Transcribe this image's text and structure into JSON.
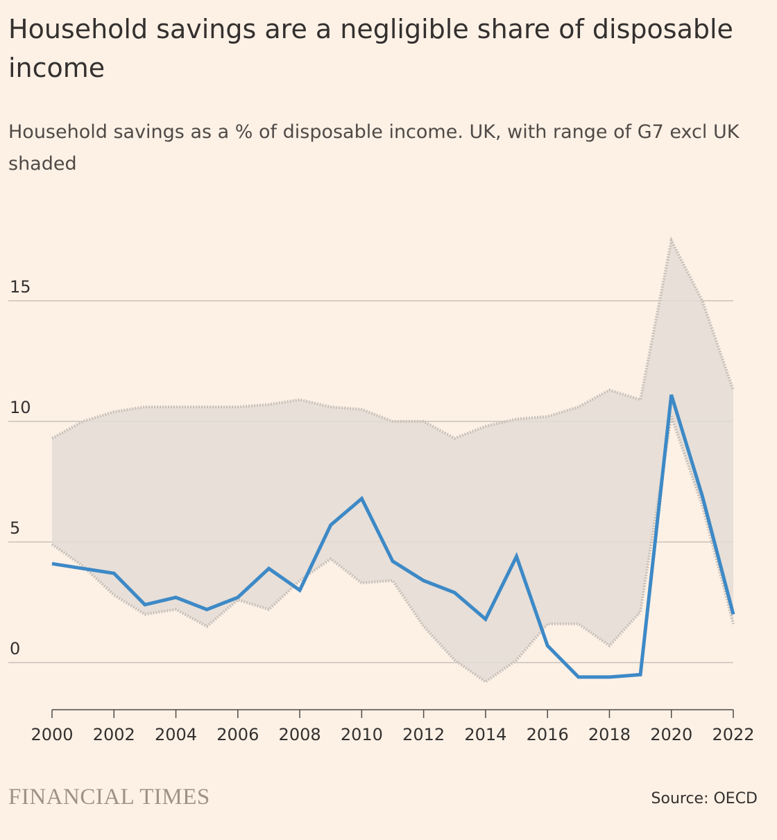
{
  "header": {
    "title": "Household savings are a negligible share of disposable income",
    "subtitle": "Household savings as a % of disposable income. UK, with range of G7 excl UK shaded"
  },
  "footer": {
    "brand": "FINANCIAL TIMES",
    "source": "Source: OECD"
  },
  "colors": {
    "background": "#fdf1e6",
    "uk_line": "#3d89c6",
    "range_fill": "#e3dcd5",
    "range_edge": "#c7c0b9",
    "gridline": "#c9c1b9",
    "text": "#33302e"
  },
  "chart_data": {
    "type": "line",
    "x": [
      2000,
      2001,
      2002,
      2003,
      2004,
      2005,
      2006,
      2007,
      2008,
      2009,
      2010,
      2011,
      2012,
      2013,
      2014,
      2015,
      2016,
      2017,
      2018,
      2019,
      2020,
      2021,
      2022
    ],
    "series": [
      {
        "name": "UK",
        "values": [
          4.1,
          3.9,
          3.7,
          2.4,
          2.7,
          2.2,
          2.7,
          3.9,
          3.0,
          5.7,
          6.8,
          4.2,
          3.4,
          2.9,
          1.8,
          4.4,
          0.7,
          -0.6,
          -0.6,
          -0.5,
          11.1,
          6.9,
          2.0
        ]
      },
      {
        "name": "G7 excl UK range (high)",
        "values": [
          9.3,
          10.0,
          10.4,
          10.6,
          10.6,
          10.6,
          10.6,
          10.7,
          10.9,
          10.6,
          10.5,
          10.0,
          10.0,
          9.3,
          9.8,
          10.1,
          10.2,
          10.6,
          11.3,
          10.9,
          17.5,
          15.0,
          11.3
        ]
      },
      {
        "name": "G7 excl UK range (low)",
        "values": [
          4.9,
          4.0,
          2.8,
          2.0,
          2.2,
          1.5,
          2.6,
          2.2,
          3.4,
          4.3,
          3.3,
          3.4,
          1.5,
          0.1,
          -0.8,
          0.1,
          1.6,
          1.6,
          0.7,
          2.1,
          10.2,
          6.5,
          1.6
        ]
      }
    ],
    "yticks": [
      0,
      5,
      10,
      15
    ],
    "xticks": [
      2000,
      2002,
      2004,
      2006,
      2008,
      2010,
      2012,
      2014,
      2016,
      2018,
      2020,
      2022
    ],
    "ylim": [
      -2,
      18
    ],
    "xlim": [
      2000,
      2022
    ],
    "grid": true,
    "legend": "none"
  }
}
